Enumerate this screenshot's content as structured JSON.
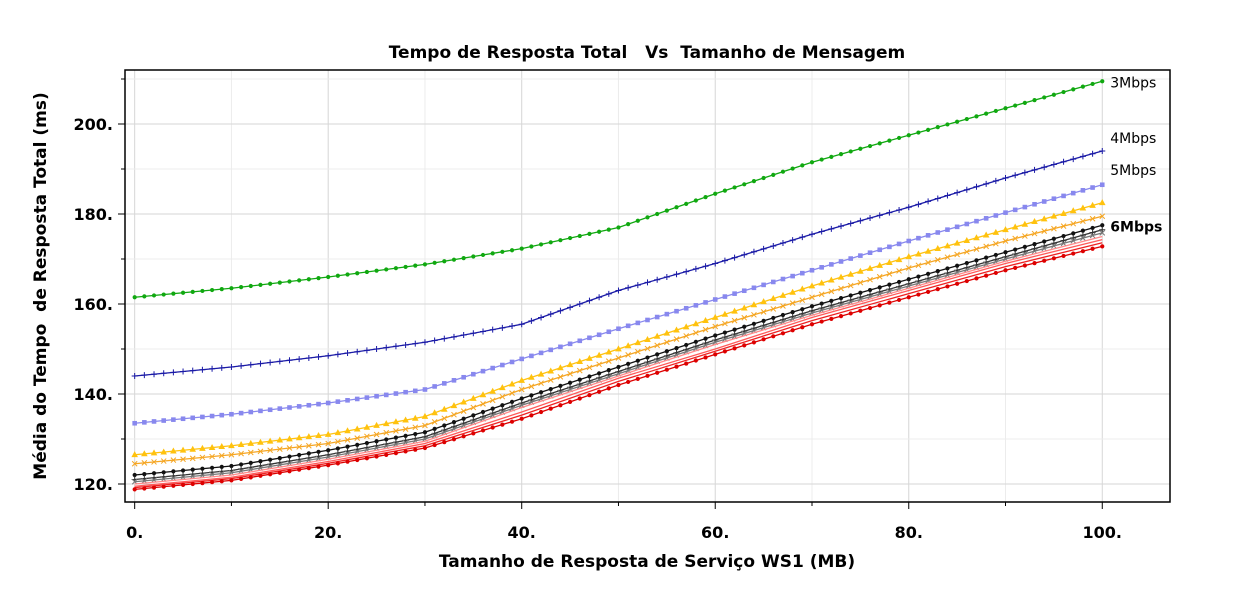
{
  "chart_data": {
    "type": "line",
    "title": "Tempo de Resposta Total   Vs  Tamanho de Mensagem",
    "xlabel": "Tamanho de Resposta de Serviço WS1 (MB)",
    "ylabel": "Média do Tempo  de Resposta Total (ms)",
    "xlim": [
      -1,
      107
    ],
    "ylim": [
      116,
      212
    ],
    "x_ticks": [
      0,
      20,
      40,
      60,
      80,
      100
    ],
    "x_tick_labels": [
      "0.",
      "20.",
      "40.",
      "60.",
      "80.",
      "100."
    ],
    "y_ticks": [
      120,
      140,
      160,
      180,
      200
    ],
    "y_tick_labels": [
      "120.",
      "140.",
      "160.",
      "180.",
      "200."
    ],
    "grid": true,
    "x": [
      0,
      10,
      20,
      30,
      40,
      50,
      60,
      70,
      80,
      90,
      100
    ],
    "series": [
      {
        "name": "3Mbps",
        "color": "#10a810",
        "marker": "dot",
        "values": [
          161.5,
          163.5,
          166,
          168.8,
          172.3,
          177,
          184.5,
          191.5,
          197.5,
          203.5,
          209.5
        ]
      },
      {
        "name": "4Mbps",
        "color": "#1a1aa6",
        "marker": "plus",
        "values": [
          144,
          146,
          148.5,
          151.5,
          155.5,
          163,
          169,
          175.5,
          181.5,
          188,
          194
        ]
      },
      {
        "name": "5Mbps",
        "color": "#8888ee",
        "marker": "square",
        "values": [
          133.5,
          135.5,
          138,
          141,
          147.8,
          154.5,
          161,
          167.5,
          174,
          180.3,
          186.5
        ]
      },
      {
        "name": "",
        "color": "#ffc20e",
        "marker": "triangle",
        "values": [
          126.5,
          128.5,
          131,
          135,
          143,
          150,
          157,
          164,
          170.5,
          176.5,
          182.5
        ]
      },
      {
        "name": "",
        "color": "#f5a623",
        "marker": "x",
        "values": [
          124.5,
          126.5,
          129,
          133,
          141,
          148,
          155,
          161.5,
          168,
          174,
          179.5
        ]
      },
      {
        "name": "6Mbps",
        "color": "#111111",
        "marker": "dot",
        "values": [
          122,
          124,
          127.5,
          131.5,
          139,
          146,
          153,
          159.5,
          165.5,
          171.5,
          177.5
        ]
      },
      {
        "name": "",
        "color": "#333333",
        "marker": "plus",
        "values": [
          121,
          123,
          126.5,
          130.5,
          138,
          145,
          152,
          158.5,
          164.5,
          170.5,
          176.5
        ]
      },
      {
        "name": "",
        "color": "#777777",
        "marker": "x",
        "values": [
          120.5,
          122.5,
          126,
          130,
          137.5,
          144.5,
          151.5,
          158,
          164,
          170,
          175.8
        ]
      },
      {
        "name": "",
        "color": "#ff8a8a",
        "marker": "none",
        "values": [
          120,
          122,
          125.5,
          129.5,
          137,
          144,
          151,
          157.5,
          163.5,
          169.5,
          175
        ]
      },
      {
        "name": "",
        "color": "#ff5a5a",
        "marker": "none",
        "values": [
          119.5,
          121.5,
          125,
          129,
          136,
          143.5,
          150,
          157,
          163,
          169,
          174.3
        ]
      },
      {
        "name": "",
        "color": "#ee2222",
        "marker": "none",
        "values": [
          119.2,
          121.2,
          124.6,
          128.5,
          135.3,
          142.8,
          149.5,
          156.3,
          162.3,
          168.3,
          173.6
        ]
      },
      {
        "name": "",
        "color": "#dd0000",
        "marker": "dot",
        "values": [
          118.8,
          120.8,
          124.2,
          128,
          134.5,
          142,
          148.8,
          155.5,
          161.5,
          167.5,
          172.8
        ]
      }
    ]
  }
}
